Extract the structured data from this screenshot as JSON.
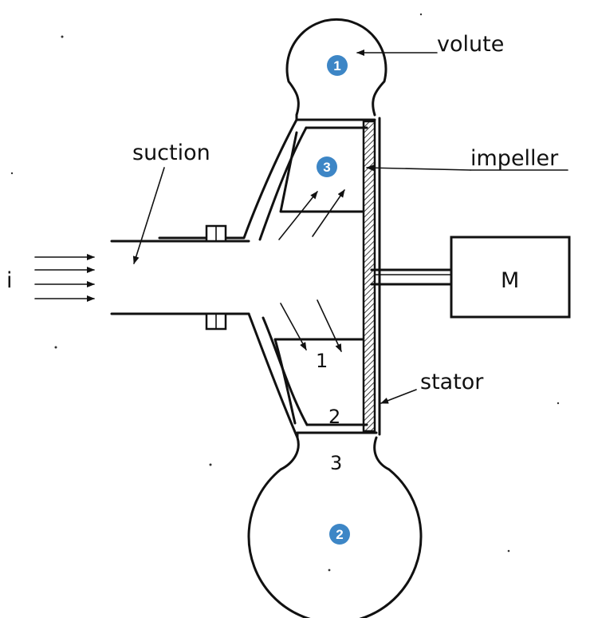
{
  "labels": {
    "volute": "volute",
    "impeller": "impeller",
    "suction": "suction",
    "stator": "stator",
    "motor": "M",
    "inflow": "i"
  },
  "stations": {
    "s1": "1",
    "s2": "2",
    "s3": "3"
  },
  "badges": {
    "b1": "1",
    "b2": "2",
    "b3": "3"
  },
  "colors": {
    "badge": "#3d86c6",
    "line": "#111111"
  }
}
